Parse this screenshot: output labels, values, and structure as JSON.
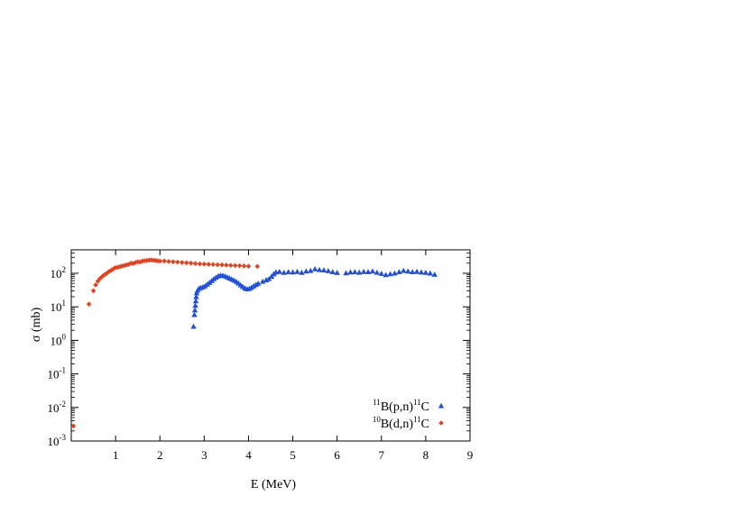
{
  "chart_data": {
    "type": "scatter",
    "xlabel": "E (MeV)",
    "ylabel": "σ (mb)",
    "xlim": [
      0,
      9
    ],
    "ylim": [
      0.001,
      500
    ],
    "y_scale": "log",
    "x_ticks": [
      {
        "value": 1,
        "label": "1"
      },
      {
        "value": 2,
        "label": "2"
      },
      {
        "value": 3,
        "label": "3"
      },
      {
        "value": 4,
        "label": "4"
      },
      {
        "value": 5,
        "label": "5"
      },
      {
        "value": 6,
        "label": "6"
      },
      {
        "value": 7,
        "label": "7"
      },
      {
        "value": 8,
        "label": "8"
      },
      {
        "value": 9,
        "label": "9"
      }
    ],
    "y_ticks": [
      {
        "value": 0.001,
        "base": "10",
        "exp": "-3"
      },
      {
        "value": 0.01,
        "base": "10",
        "exp": "-2"
      },
      {
        "value": 0.1,
        "base": "10",
        "exp": "-1"
      },
      {
        "value": 1,
        "base": "10",
        "exp": "0"
      },
      {
        "value": 10,
        "base": "10",
        "exp": "1"
      },
      {
        "value": 100,
        "base": "10",
        "exp": "2"
      }
    ],
    "grid": false,
    "legend_position": "bottom-right",
    "series": [
      {
        "name": "11B(p,n)11C",
        "label_parts": {
          "pre_sup": "11",
          "main": "B(p,n)",
          "post_sup": "11",
          "tail": "C"
        },
        "marker": "triangle",
        "color": "#1f4fe0",
        "points": [
          [
            2.76,
            2.6
          ],
          [
            2.78,
            5.8
          ],
          [
            2.79,
            8.0
          ],
          [
            2.8,
            11
          ],
          [
            2.81,
            15
          ],
          [
            2.82,
            20
          ],
          [
            2.83,
            26
          ],
          [
            2.85,
            31
          ],
          [
            2.88,
            35
          ],
          [
            2.92,
            37
          ],
          [
            2.97,
            39
          ],
          [
            3.02,
            42
          ],
          [
            3.07,
            47
          ],
          [
            3.12,
            53
          ],
          [
            3.17,
            60
          ],
          [
            3.22,
            68
          ],
          [
            3.27,
            76
          ],
          [
            3.32,
            83
          ],
          [
            3.37,
            87
          ],
          [
            3.42,
            86
          ],
          [
            3.47,
            82
          ],
          [
            3.52,
            77
          ],
          [
            3.57,
            72
          ],
          [
            3.62,
            67
          ],
          [
            3.67,
            62
          ],
          [
            3.72,
            57
          ],
          [
            3.77,
            51
          ],
          [
            3.82,
            45
          ],
          [
            3.87,
            40
          ],
          [
            3.92,
            36
          ],
          [
            3.97,
            34
          ],
          [
            4.02,
            35
          ],
          [
            4.07,
            38
          ],
          [
            4.12,
            42
          ],
          [
            4.17,
            46
          ],
          [
            4.22,
            50
          ],
          [
            4.32,
            57
          ],
          [
            4.4,
            63
          ],
          [
            4.46,
            68
          ],
          [
            4.52,
            80
          ],
          [
            4.57,
            95
          ],
          [
            4.62,
            108
          ],
          [
            4.7,
            112
          ],
          [
            4.8,
            105
          ],
          [
            4.9,
            110
          ],
          [
            5.0,
            108
          ],
          [
            5.1,
            112
          ],
          [
            5.2,
            105
          ],
          [
            5.3,
            115
          ],
          [
            5.4,
            120
          ],
          [
            5.5,
            135
          ],
          [
            5.6,
            128
          ],
          [
            5.7,
            125
          ],
          [
            5.8,
            118
          ],
          [
            5.9,
            110
          ],
          [
            6.0,
            104
          ],
          [
            6.2,
            102
          ],
          [
            6.3,
            108
          ],
          [
            6.4,
            110
          ],
          [
            6.5,
            106
          ],
          [
            6.6,
            112
          ],
          [
            6.7,
            110
          ],
          [
            6.8,
            115
          ],
          [
            6.9,
            106
          ],
          [
            7.0,
            98
          ],
          [
            7.1,
            90
          ],
          [
            7.2,
            96
          ],
          [
            7.3,
            100
          ],
          [
            7.4,
            110
          ],
          [
            7.5,
            120
          ],
          [
            7.6,
            115
          ],
          [
            7.7,
            110
          ],
          [
            7.8,
            112
          ],
          [
            7.9,
            108
          ],
          [
            8.0,
            105
          ],
          [
            8.1,
            100
          ],
          [
            8.2,
            92
          ]
        ]
      },
      {
        "name": "10B(d,n)11C",
        "label_parts": {
          "pre_sup": "10",
          "main": "B(d,n)",
          "post_sup": "11",
          "tail": "C"
        },
        "marker": "diamond",
        "color": "#e8401c",
        "points": [
          [
            0.05,
            0.0028
          ],
          [
            0.4,
            12
          ],
          [
            0.5,
            30
          ],
          [
            0.55,
            45
          ],
          [
            0.6,
            58
          ],
          [
            0.65,
            70
          ],
          [
            0.7,
            80
          ],
          [
            0.75,
            90
          ],
          [
            0.8,
            100
          ],
          [
            0.85,
            112
          ],
          [
            0.9,
            122
          ],
          [
            0.95,
            135
          ],
          [
            1.0,
            148
          ],
          [
            1.05,
            150
          ],
          [
            1.1,
            158
          ],
          [
            1.15,
            165
          ],
          [
            1.2,
            170
          ],
          [
            1.25,
            178
          ],
          [
            1.3,
            185
          ],
          [
            1.35,
            200
          ],
          [
            1.4,
            195
          ],
          [
            1.45,
            210
          ],
          [
            1.5,
            220
          ],
          [
            1.55,
            215
          ],
          [
            1.6,
            230
          ],
          [
            1.65,
            235
          ],
          [
            1.7,
            240
          ],
          [
            1.75,
            245
          ],
          [
            1.8,
            250
          ],
          [
            1.85,
            245
          ],
          [
            1.9,
            240
          ],
          [
            1.95,
            235
          ],
          [
            2.0,
            230
          ],
          [
            2.1,
            232
          ],
          [
            2.2,
            225
          ],
          [
            2.3,
            220
          ],
          [
            2.4,
            215
          ],
          [
            2.5,
            210
          ],
          [
            2.6,
            205
          ],
          [
            2.7,
            200
          ],
          [
            2.8,
            195
          ],
          [
            2.9,
            190
          ],
          [
            3.0,
            188
          ],
          [
            3.1,
            185
          ],
          [
            3.2,
            183
          ],
          [
            3.3,
            180
          ],
          [
            3.4,
            178
          ],
          [
            3.5,
            175
          ],
          [
            3.6,
            172
          ],
          [
            3.7,
            170
          ],
          [
            3.8,
            168
          ],
          [
            3.9,
            165
          ],
          [
            4.0,
            162
          ],
          [
            4.2,
            160
          ]
        ]
      }
    ]
  }
}
